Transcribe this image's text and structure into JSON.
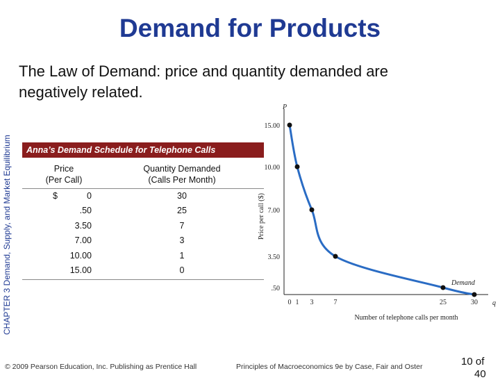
{
  "slide": {
    "title": "Demand for Products",
    "subtitle": "The Law of Demand: price and quantity demanded are negatively related.",
    "side_label": "CHAPTER 3 Demand, Supply, and Market Equilibrium",
    "footer_left": "© 2009 Pearson Education, Inc. Publishing as Prentice Hall",
    "footer_right": "Principles of Macroeconomics 9e by Case, Fair and Oster",
    "page_number": "10 of",
    "page_number_continued": "40"
  },
  "table": {
    "header": "Anna’s Demand Schedule for Telephone Calls",
    "col_price": "Price (Per Call)",
    "col_price_line1": "Price",
    "col_price_line2": "(Per Call)",
    "col_qty_line1": "Quantity Demanded",
    "col_qty_line2": "(Calls Per Month)",
    "dollar_sign": "$",
    "rows": [
      {
        "price": "0",
        "qty": "30"
      },
      {
        "price": ".50",
        "qty": "25"
      },
      {
        "price": "3.50",
        "qty": "7"
      },
      {
        "price": "7.00",
        "qty": "3"
      },
      {
        "price": "10.00",
        "qty": "1"
      },
      {
        "price": "15.00",
        "qty": "0"
      }
    ]
  },
  "colors": {
    "title": "#1f3a93",
    "table_header_bg": "#8a1d1d",
    "curve": "#2a6cc4",
    "points": "#111111"
  },
  "chart_data": {
    "type": "line",
    "ylabel": "Price per call ($)",
    "xlabel": "Number of telephone calls per month",
    "y_axis_letter": "P",
    "x_axis_letter": "q",
    "curve_label": "Demand",
    "x_ticks": [
      "0",
      "1",
      "3",
      "7",
      "25",
      "30"
    ],
    "y_ticks": [
      "15.00",
      "10.00",
      "7.00",
      "3.50",
      ".50"
    ],
    "series": [
      {
        "name": "Demand",
        "points": [
          {
            "q": 0,
            "p": 15.0
          },
          {
            "q": 1,
            "p": 10.0
          },
          {
            "q": 3,
            "p": 7.0
          },
          {
            "q": 7,
            "p": 3.5
          },
          {
            "q": 25,
            "p": 0.5
          },
          {
            "q": 30,
            "p": 0
          }
        ]
      }
    ]
  }
}
